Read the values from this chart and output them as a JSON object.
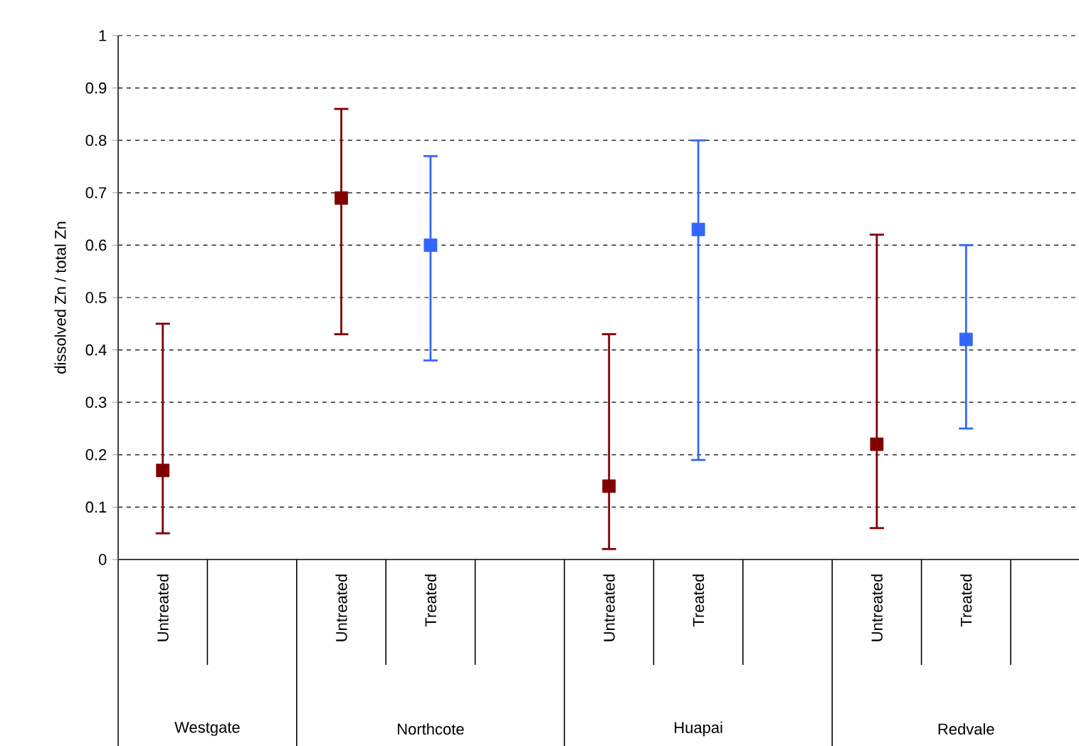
{
  "chart_data": {
    "type": "scatter",
    "ylabel": "dissolved Zn / total Zn",
    "categories": [
      "Untreated",
      null,
      "Untreated",
      "Treated",
      null,
      "Untreated",
      "Treated",
      null,
      "Untreated",
      "Treated",
      null
    ],
    "annotations": [
      "Westgate",
      "Northcote",
      "Huapai",
      "Redvale"
    ],
    "series": [
      {
        "color": "#800000",
        "values": [
          0.17,
          null,
          0.69,
          null,
          null,
          0.14,
          null,
          null,
          0.22,
          null,
          null
        ],
        "errors": [
          [
            0.05,
            0.45
          ],
          null,
          [
            0.43,
            0.86
          ],
          null,
          null,
          [
            0.02,
            0.43
          ],
          null,
          null,
          [
            0.06,
            0.62
          ],
          null,
          null
        ]
      },
      {
        "color": "#3366ff",
        "values": [
          null,
          null,
          null,
          0.6,
          null,
          null,
          0.63,
          null,
          null,
          0.42,
          null
        ],
        "errors": [
          null,
          null,
          null,
          [
            0.38,
            0.77
          ],
          null,
          null,
          [
            0.19,
            0.8
          ],
          null,
          null,
          [
            0.25,
            0.6
          ],
          null
        ]
      }
    ],
    "ylim": [
      0,
      1
    ],
    "yticks": [
      0,
      0.1,
      0.2,
      0.3,
      0.4,
      0.5,
      0.6,
      0.7,
      0.8,
      0.9,
      1
    ],
    "grid": "y",
    "marker": "square"
  }
}
